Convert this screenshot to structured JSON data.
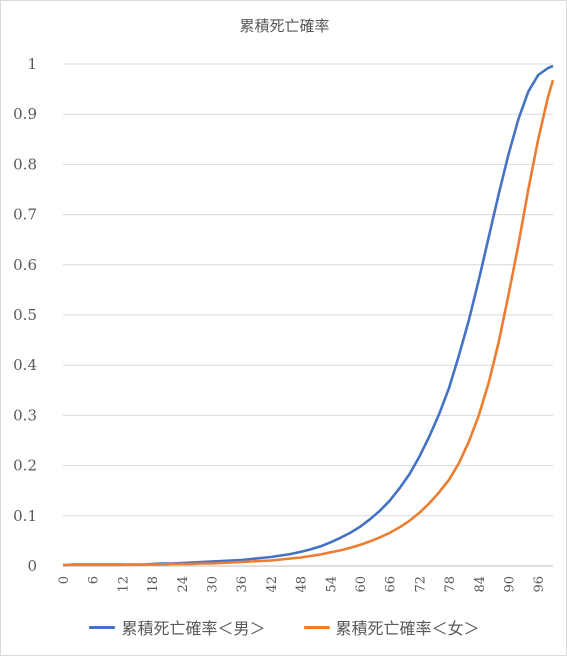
{
  "chart_data": {
    "type": "line",
    "title": "累積死亡確率",
    "xlabel": "",
    "ylabel": "",
    "xlim": [
      0,
      99
    ],
    "ylim": [
      0,
      1
    ],
    "y_ticks": [
      "0",
      "0.1",
      "0.2",
      "0.3",
      "0.4",
      "0.5",
      "0.6",
      "0.7",
      "0.8",
      "0.9",
      "1"
    ],
    "x_ticks": [
      "0",
      "6",
      "12",
      "18",
      "24",
      "30",
      "36",
      "42",
      "48",
      "54",
      "60",
      "66",
      "72",
      "78",
      "84",
      "90",
      "96"
    ],
    "grid": true,
    "legend_position": "bottom",
    "series": [
      {
        "name": "累積死亡確率＜男＞",
        "color": "#4472C4",
        "x": [
          0,
          1,
          2,
          4,
          6,
          8,
          10,
          12,
          14,
          16,
          18,
          20,
          22,
          24,
          26,
          28,
          30,
          32,
          34,
          36,
          38,
          40,
          42,
          44,
          46,
          48,
          50,
          52,
          54,
          56,
          58,
          60,
          62,
          64,
          66,
          68,
          70,
          72,
          74,
          76,
          78,
          80,
          82,
          84,
          86,
          88,
          90,
          92,
          94,
          96,
          98,
          99
        ],
        "y": [
          0.002,
          0.002,
          0.003,
          0.003,
          0.003,
          0.003,
          0.003,
          0.003,
          0.003,
          0.003,
          0.004,
          0.005,
          0.005,
          0.006,
          0.007,
          0.008,
          0.009,
          0.01,
          0.011,
          0.012,
          0.014,
          0.016,
          0.018,
          0.021,
          0.024,
          0.028,
          0.033,
          0.039,
          0.047,
          0.056,
          0.066,
          0.078,
          0.093,
          0.11,
          0.13,
          0.155,
          0.183,
          0.218,
          0.258,
          0.303,
          0.355,
          0.42,
          0.49,
          0.57,
          0.655,
          0.74,
          0.82,
          0.89,
          0.945,
          0.978,
          0.992,
          0.996
        ]
      },
      {
        "name": "累積死亡確率＜女＞",
        "color": "#ED7D31",
        "x": [
          0,
          1,
          2,
          4,
          6,
          8,
          10,
          12,
          14,
          16,
          18,
          20,
          22,
          24,
          26,
          28,
          30,
          32,
          34,
          36,
          38,
          40,
          42,
          44,
          46,
          48,
          50,
          52,
          54,
          56,
          58,
          60,
          62,
          64,
          66,
          68,
          70,
          72,
          74,
          76,
          78,
          80,
          82,
          84,
          86,
          88,
          90,
          92,
          94,
          96,
          98,
          99
        ],
        "y": [
          0.002,
          0.002,
          0.002,
          0.002,
          0.002,
          0.002,
          0.002,
          0.002,
          0.003,
          0.003,
          0.003,
          0.003,
          0.004,
          0.004,
          0.004,
          0.005,
          0.005,
          0.006,
          0.007,
          0.008,
          0.009,
          0.01,
          0.011,
          0.013,
          0.015,
          0.017,
          0.02,
          0.023,
          0.027,
          0.031,
          0.036,
          0.042,
          0.049,
          0.057,
          0.066,
          0.077,
          0.09,
          0.106,
          0.125,
          0.147,
          0.172,
          0.205,
          0.248,
          0.3,
          0.365,
          0.445,
          0.54,
          0.64,
          0.75,
          0.85,
          0.935,
          0.968
        ]
      }
    ]
  }
}
